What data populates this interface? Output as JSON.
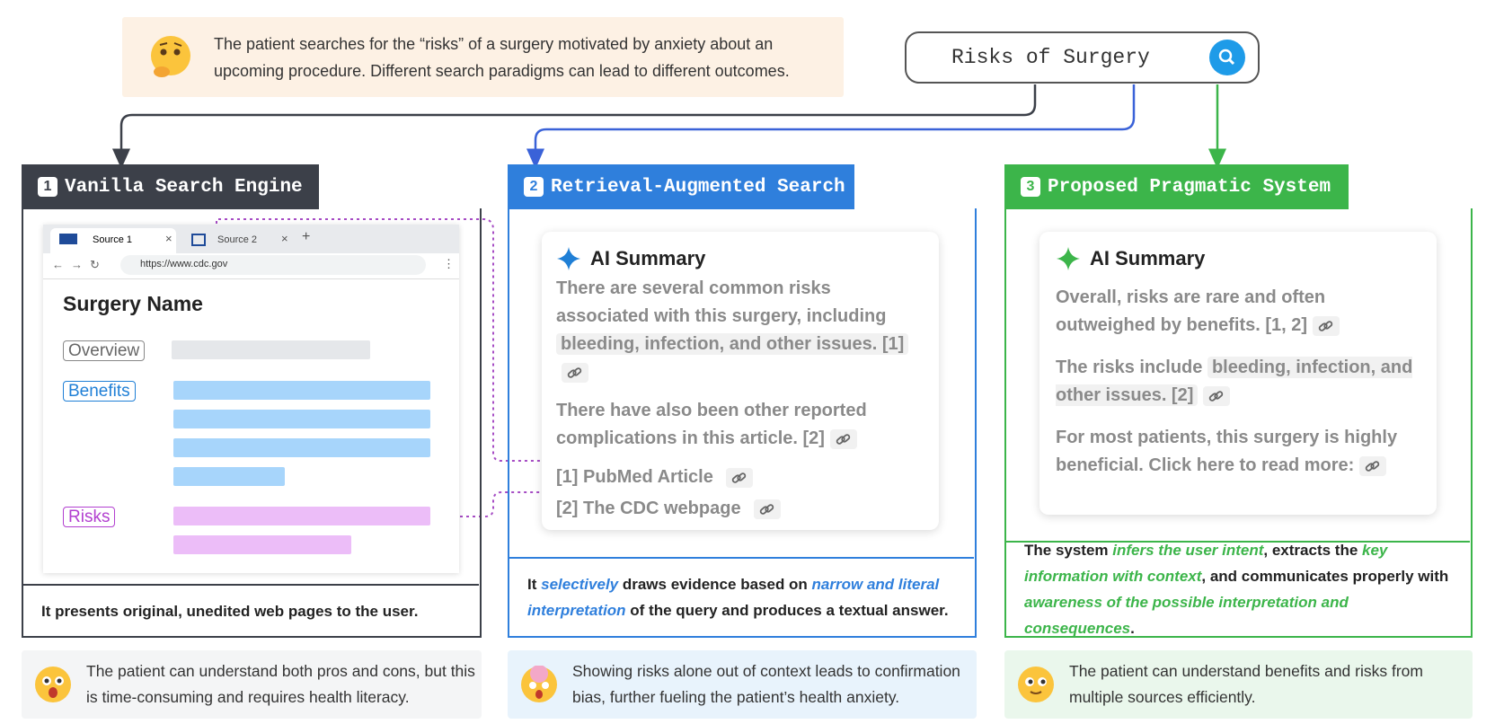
{
  "intro": {
    "text": "The patient searches for the “risks” of a surgery motivated by anxiety about an upcoming procedure. Different search paradigms can lead to different outcomes."
  },
  "search": {
    "query": "Risks of Surgery"
  },
  "panels": [
    {
      "number": "1",
      "title": "Vanilla Search Engine",
      "browser": {
        "tabs": [
          "Source 1",
          "Source 2"
        ],
        "url": "https://www.cdc.gov",
        "page_title": "Surgery Name",
        "sections": [
          "Overview",
          "Benefits",
          "Risks"
        ]
      },
      "description": [
        "It presents original, unedited web pages to the user."
      ],
      "outcome": "The patient can understand both pros and cons, but this is time-consuming and requires health literacy."
    },
    {
      "number": "2",
      "title": "Retrieval-Augmented Search",
      "summary": {
        "heading": "AI Summary",
        "paragraphs": [
          [
            "There are several common risks associated with this surgery, including ",
            "bleeding, infection, and other issues. [1]"
          ],
          [
            "There have also been other reported complications in this article. [2]"
          ]
        ],
        "references": [
          "[1] PubMed Article",
          "[2] The CDC webpage"
        ]
      },
      "description": [
        "It ",
        "selectively",
        " draws evidence based on ",
        "narrow and literal interpretation",
        " of the query and produces a textual answer."
      ],
      "outcome": "Showing risks alone out of context leads to confirmation bias, further fueling the patient’s health anxiety."
    },
    {
      "number": "3",
      "title": "Proposed Pragmatic System",
      "summary": {
        "heading": "AI Summary",
        "paragraphs": [
          [
            "Overall, risks are rare and often outweighed by benefits. [1, 2]"
          ],
          [
            "The risks include ",
            "bleeding, infection, and other issues. [2]"
          ],
          [
            "For most patients, this surgery is highly beneficial. Click here to read more:"
          ]
        ]
      },
      "description": [
        "The system ",
        "infers the user intent",
        ", extracts the ",
        "key information with context",
        ", and communicates properly with ",
        "awareness of the possible interpretation and consequences",
        "."
      ],
      "outcome": "The patient can understand benefits and risks from multiple sources efficiently."
    }
  ]
}
